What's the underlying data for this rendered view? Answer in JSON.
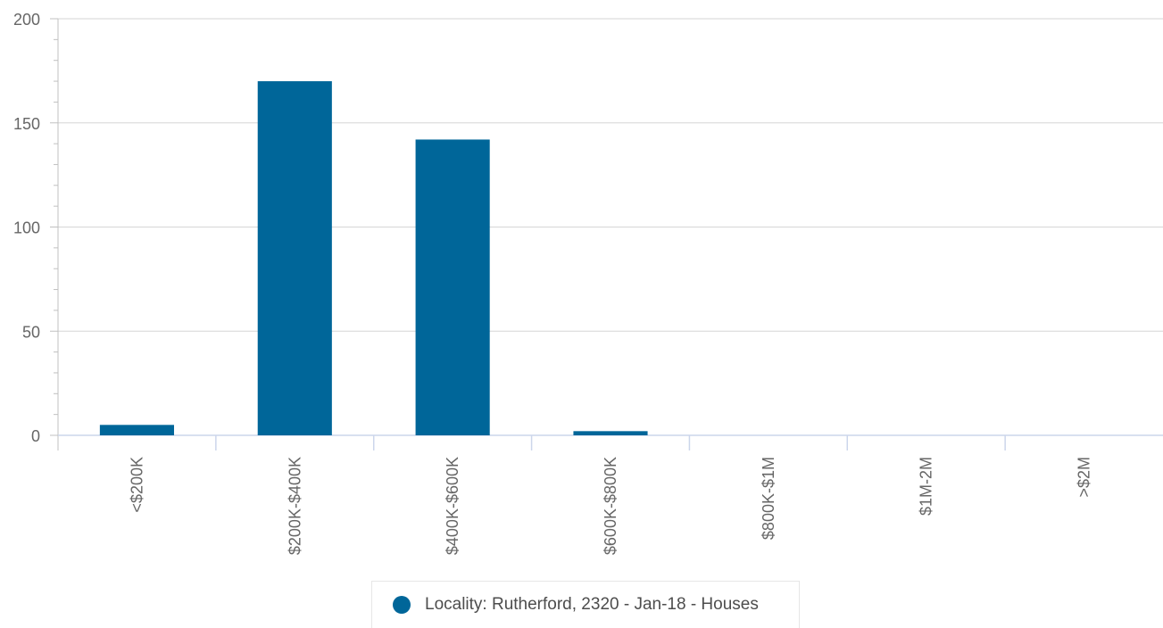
{
  "chart_data": {
    "type": "bar",
    "categories": [
      "<$200K",
      "$200K-$400K",
      "$400K-$600K",
      "$600K-$800K",
      "$800K-$1M",
      "$1M-2M",
      ">$2M"
    ],
    "series": [
      {
        "name": "Locality: Rutherford, 2320 - Jan-18 - Houses",
        "values": [
          5,
          170,
          142,
          2,
          0,
          0,
          0
        ],
        "color": "#006699"
      }
    ],
    "ylim": [
      0,
      200
    ],
    "yticks": [
      0,
      50,
      100,
      150,
      200
    ],
    "grid": true,
    "legend_position": "bottom-center"
  }
}
